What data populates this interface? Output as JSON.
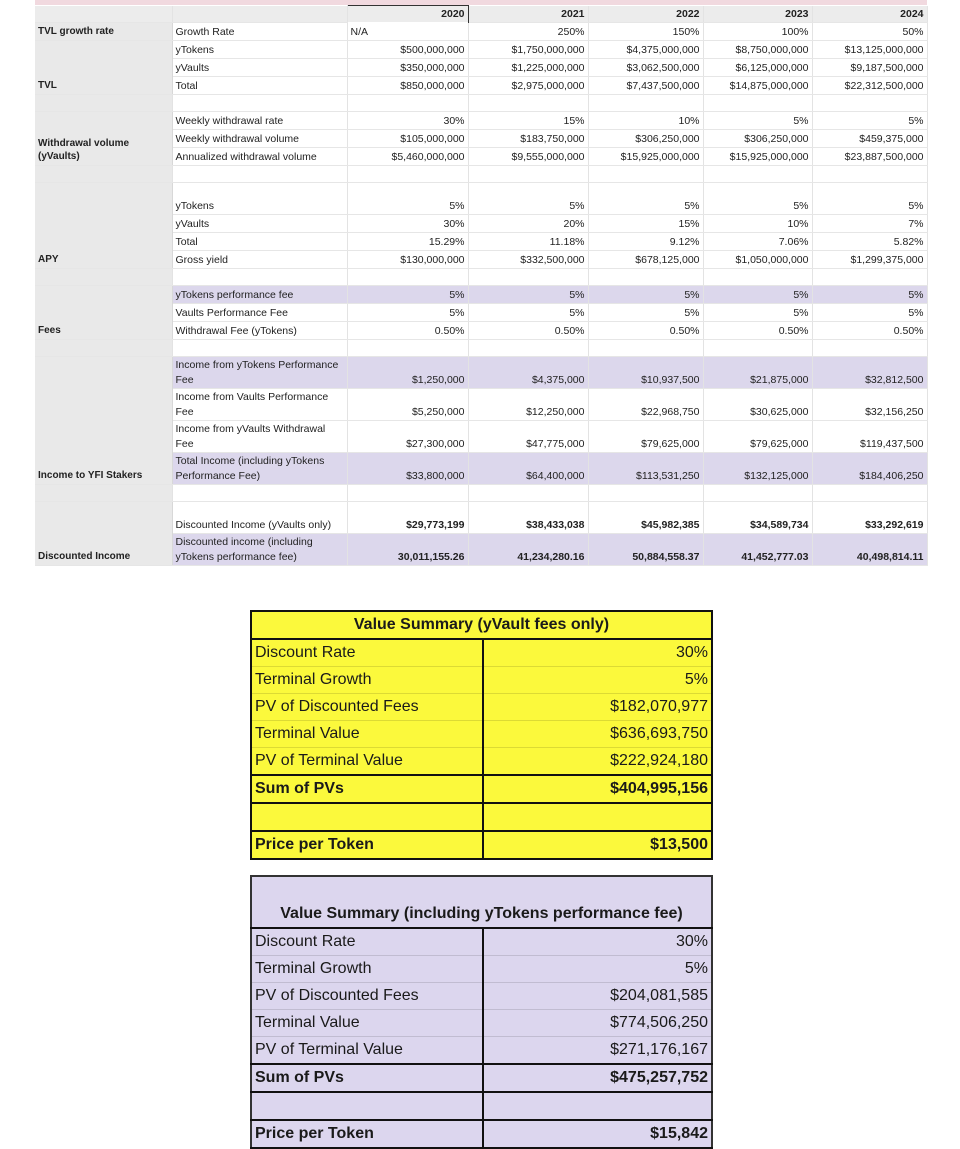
{
  "model": {
    "years": [
      "2020",
      "2021",
      "2022",
      "2023",
      "2024"
    ],
    "groups": [
      {
        "label": "TVL growth rate",
        "rows": [
          {
            "label": "Growth Rate",
            "values": [
              "N/A",
              "250%",
              "150%",
              "100%",
              "50%"
            ],
            "first_left": true
          }
        ],
        "nosep": true
      },
      {
        "label": "TVL",
        "rows": [
          {
            "label": "yTokens",
            "values": [
              "$500,000,000",
              "$1,750,000,000",
              "$4,375,000,000",
              "$8,750,000,000",
              "$13,125,000,000"
            ]
          },
          {
            "label": "yVaults",
            "values": [
              "$350,000,000",
              "$1,225,000,000",
              "$3,062,500,000",
              "$6,125,000,000",
              "$9,187,500,000"
            ]
          },
          {
            "label": "Total",
            "values": [
              "$850,000,000",
              "$2,975,000,000",
              "$7,437,500,000",
              "$14,875,000,000",
              "$22,312,500,000"
            ]
          }
        ]
      },
      {
        "label": "Withdrawal volume (yVaults)",
        "rows": [
          {
            "label": "Weekly withdrawal rate",
            "values": [
              "30%",
              "15%",
              "10%",
              "5%",
              "5%"
            ]
          },
          {
            "label": "Weekly withdrawal volume",
            "values": [
              "$105,000,000",
              "$183,750,000",
              "$306,250,000",
              "$306,250,000",
              "$459,375,000"
            ]
          },
          {
            "label": "Annualized withdrawal volume",
            "values": [
              "$5,460,000,000",
              "$9,555,000,000",
              "$15,925,000,000",
              "$15,925,000,000",
              "$23,887,500,000"
            ]
          }
        ]
      },
      {
        "label": "APY",
        "rows": [
          {
            "label": "yTokens",
            "values": [
              "5%",
              "5%",
              "5%",
              "5%",
              "5%"
            ],
            "tall": true
          },
          {
            "label": "yVaults",
            "values": [
              "30%",
              "20%",
              "15%",
              "10%",
              "7%"
            ]
          },
          {
            "label": "Total",
            "values": [
              "15.29%",
              "11.18%",
              "9.12%",
              "7.06%",
              "5.82%"
            ]
          },
          {
            "label": "Gross yield",
            "values": [
              "$130,000,000",
              "$332,500,000",
              "$678,125,000",
              "$1,050,000,000",
              "$1,299,375,000"
            ]
          }
        ]
      },
      {
        "label": "Fees",
        "rows": [
          {
            "label": "yTokens performance fee",
            "values": [
              "5%",
              "5%",
              "5%",
              "5%",
              "5%"
            ],
            "highlight": true
          },
          {
            "label": "Vaults Performance Fee",
            "values": [
              "5%",
              "5%",
              "5%",
              "5%",
              "5%"
            ]
          },
          {
            "label": "Withdrawal Fee (yTokens)",
            "values": [
              "0.50%",
              "0.50%",
              "0.50%",
              "0.50%",
              "0.50%"
            ]
          }
        ]
      },
      {
        "label": "Income to YFI Stakers",
        "rows": [
          {
            "label": "Income from yTokens Performance Fee",
            "values": [
              "$1,250,000",
              "$4,375,000",
              "$10,937,500",
              "$21,875,000",
              "$32,812,500"
            ],
            "highlight": true,
            "tall": true
          },
          {
            "label": "Income from Vaults Performance Fee",
            "values": [
              "$5,250,000",
              "$12,250,000",
              "$22,968,750",
              "$30,625,000",
              "$32,156,250"
            ],
            "tall": true
          },
          {
            "label": "Income from yVaults Withdrawal Fee",
            "values": [
              "$27,300,000",
              "$47,775,000",
              "$79,625,000",
              "$79,625,000",
              "$119,437,500"
            ],
            "tall": true
          },
          {
            "label": "Total Income (including yTokens Performance Fee)",
            "values": [
              "$33,800,000",
              "$64,400,000",
              "$113,531,250",
              "$132,125,000",
              "$184,406,250"
            ],
            "highlight": true,
            "tall": true
          }
        ]
      },
      {
        "label": "Discounted Income",
        "last": true,
        "rows": [
          {
            "label": "Discounted Income (yVaults only)",
            "values": [
              "$29,773,199",
              "$38,433,038",
              "$45,982,385",
              "$34,589,734",
              "$33,292,619"
            ],
            "tall": true,
            "bold": true
          },
          {
            "label": "Discounted income (including yTokens performance fee)",
            "values": [
              "30,011,155.26",
              "41,234,280.16",
              "50,884,558.37",
              "41,452,777.03",
              "40,498,814.11"
            ],
            "highlight": true,
            "tall": true,
            "bold": true
          }
        ]
      }
    ]
  },
  "summary_yvault": {
    "title": "Value Summary (yVault fees only)",
    "rows": [
      {
        "label": "Discount Rate",
        "value": "30%"
      },
      {
        "label": "Terminal Growth",
        "value": "5%"
      },
      {
        "label": "PV of Discounted Fees",
        "value": "$182,070,977"
      },
      {
        "label": "Terminal Value",
        "value": "$636,693,750"
      },
      {
        "label": "PV of Terminal Value",
        "value": "$222,924,180"
      }
    ],
    "sum_label": "Sum of PVs",
    "sum_value": "$404,995,156",
    "price_label": "Price per Token",
    "price_value": "$13,500",
    "color": "#fbf93c"
  },
  "summary_including": {
    "title": "Value Summary (including yTokens performance fee)",
    "rows": [
      {
        "label": "Discount Rate",
        "value": "30%"
      },
      {
        "label": "Terminal Growth",
        "value": "5%"
      },
      {
        "label": "PV of Discounted Fees",
        "value": "$204,081,585"
      },
      {
        "label": "Terminal Value",
        "value": "$774,506,250"
      },
      {
        "label": "PV of Terminal Value",
        "value": "$271,176,167"
      }
    ],
    "sum_label": "Sum of PVs",
    "sum_value": "$475,257,752",
    "price_label": "Price per Token",
    "price_value": "$15,842",
    "color": "#dcd6ee"
  },
  "colors": {
    "highlight_row": "#dcd7ec",
    "group_column": "#e9e9e9",
    "header_strip": "#f1d9df"
  }
}
